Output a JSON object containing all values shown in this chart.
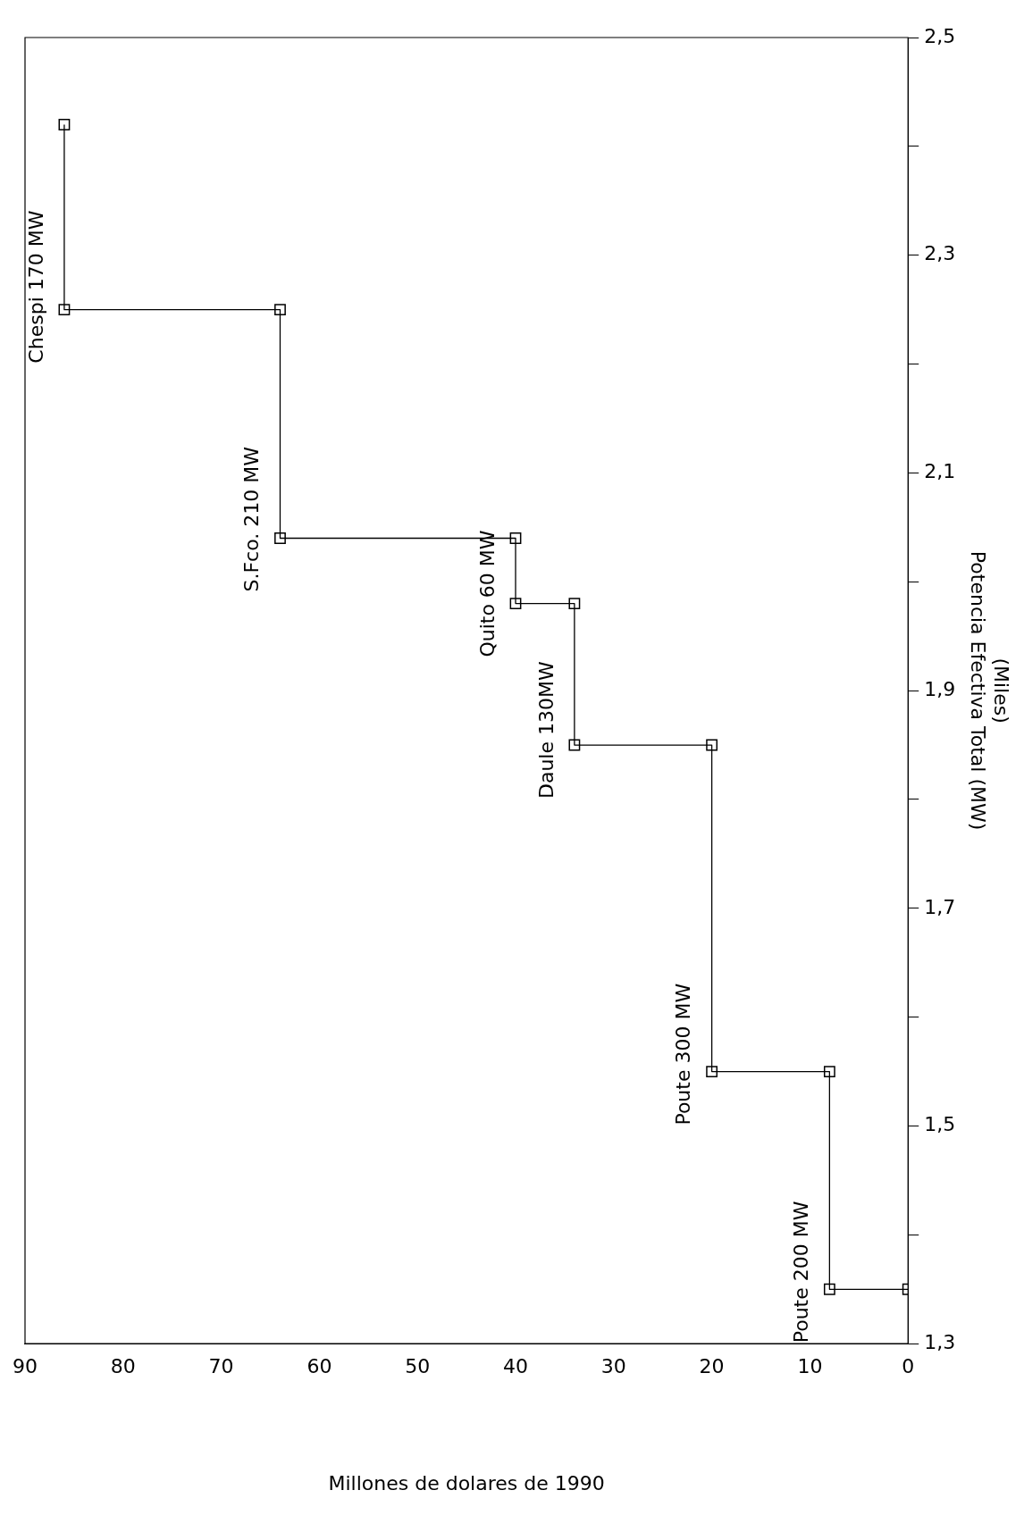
{
  "chart_data": {
    "type": "line",
    "xlabel": "Millones de dolares de 1990",
    "ylabel": "Potencia Efectiva Total (MW)",
    "x": [
      0,
      8,
      8,
      20,
      20,
      34,
      34,
      40,
      40,
      64,
      64,
      86,
      86
    ],
    "series": [
      {
        "color": "#000000",
        "values": [
          1.35,
          1.35,
          1.55,
          1.55,
          1.85,
          1.85,
          1.98,
          1.98,
          2.04,
          2.04,
          2.25,
          2.25,
          2.42
        ]
      }
    ],
    "ylim": [
      1.3,
      2.5
    ],
    "yticks": [
      {
        "value": 1.3,
        "label": "1,3"
      },
      {
        "value": 1.4,
        "label": null
      },
      {
        "value": 1.5,
        "label": "1,5"
      },
      {
        "value": 1.6,
        "label": null
      },
      {
        "value": 1.7,
        "label": "1,7"
      },
      {
        "value": 1.8,
        "label": null
      },
      {
        "value": 1.9,
        "label": "1,9"
      },
      {
        "value": 2.0,
        "label": null
      },
      {
        "value": 2.1,
        "label": "2,1"
      },
      {
        "value": 2.2,
        "label": null
      },
      {
        "value": 2.3,
        "label": "2,3"
      },
      {
        "value": 2.4,
        "label": null
      },
      {
        "value": 2.5,
        "label": "2,5"
      }
    ],
    "xlim": [
      90,
      0
    ],
    "xticks": [
      90,
      80,
      70,
      60,
      50,
      40,
      30,
      20,
      10,
      0
    ],
    "marker": "square",
    "line_style": "solid",
    "grid": false,
    "legend": false,
    "annotations": [
      "(Miles)",
      {
        "text": "Poute 200 MW",
        "x": 8,
        "y": 1.35
      },
      {
        "text": "Poute 300 MW",
        "x": 20,
        "y": 1.55
      },
      {
        "text": "Daule 130MW",
        "x": 34,
        "y": 1.85
      },
      {
        "text": "Quito 60 MW",
        "x": 40,
        "y": 1.98
      },
      {
        "text": "S.Fco. 210 MW",
        "x": 64,
        "y": 2.04
      },
      {
        "text": "Chespi 170 MW",
        "x": 86,
        "y": 2.25
      }
    ]
  }
}
